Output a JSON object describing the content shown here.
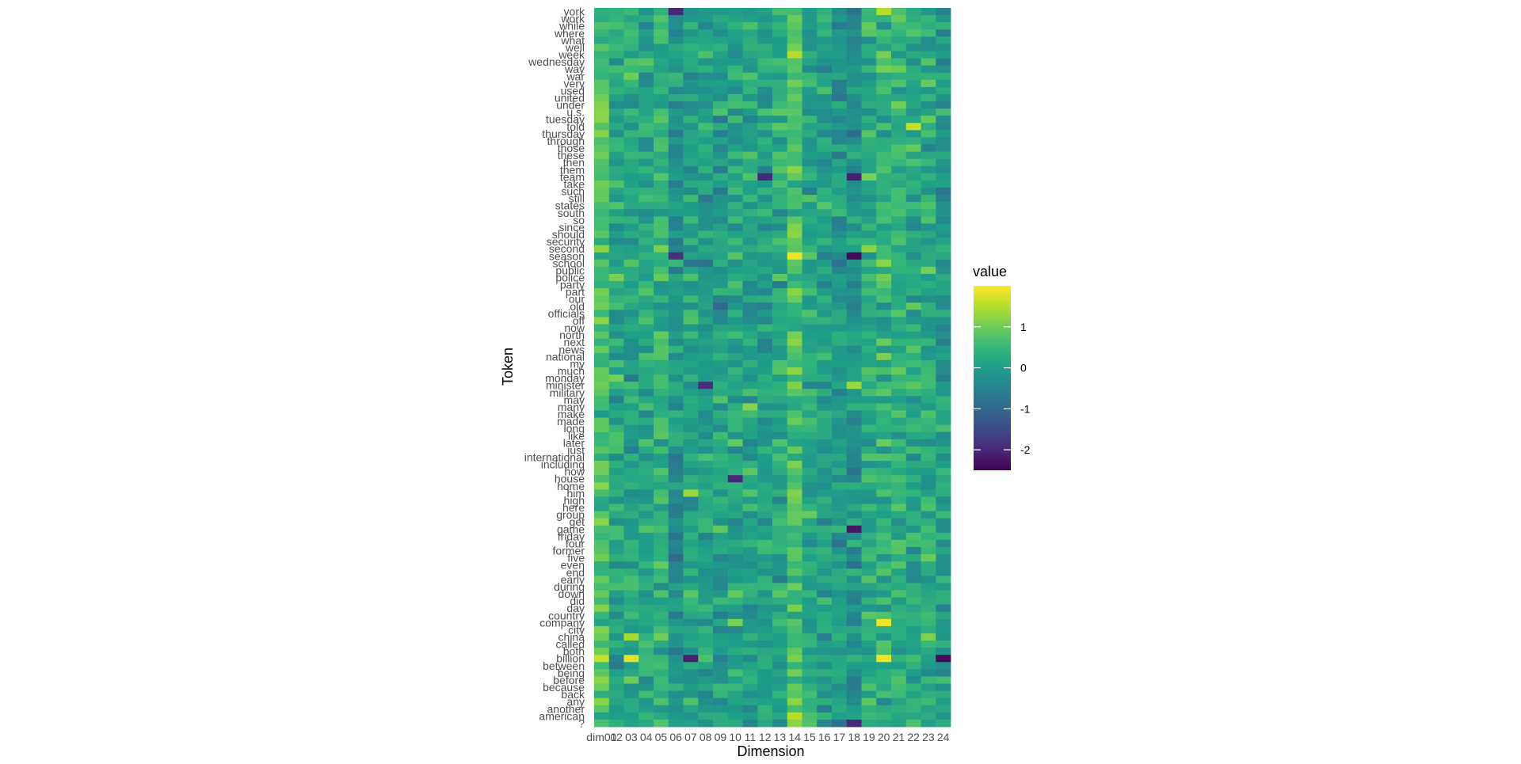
{
  "chart_data": {
    "type": "heatmap",
    "title": "",
    "xlabel": "Dimension",
    "ylabel": "Token",
    "legend": {
      "title": "value",
      "ticks": [
        1,
        0,
        -1,
        -2
      ],
      "tick_labels": [
        "1",
        "0",
        "-1",
        "-2"
      ],
      "range": [
        -2.5,
        2.0
      ],
      "colormap": "viridis",
      "placement": "right"
    },
    "x_categories": [
      "dim01",
      "dim02",
      "dim03",
      "dim04",
      "dim05",
      "dim06",
      "dim07",
      "dim08",
      "dim09",
      "dim10",
      "dim11",
      "dim12",
      "dim13",
      "dim14",
      "dim15",
      "dim16",
      "dim17",
      "dim18",
      "dim19",
      "dim20",
      "dim21",
      "dim22",
      "dim23",
      "dim24"
    ],
    "x_tick_labels": [
      "dim01",
      "02",
      "03",
      "04",
      "05",
      "06",
      "07",
      "08",
      "09",
      "10",
      "11",
      "12",
      "13",
      "14",
      "15",
      "16",
      "17",
      "18",
      "19",
      "20",
      "21",
      "22",
      "23",
      "24"
    ],
    "y_categories_top_to_bottom": [
      "york",
      "work",
      "while",
      "where",
      "what",
      "well",
      "week",
      "wednesday",
      "way",
      "war",
      "very",
      "used",
      "united",
      "under",
      "u.s.",
      "tuesday",
      "told",
      "thursday",
      "through",
      "those",
      "these",
      "then",
      "them",
      "team",
      "take",
      "such",
      "still",
      "states",
      "south",
      "so",
      "since",
      "should",
      "security",
      "second",
      "season",
      "school",
      "public",
      "police",
      "party",
      "part",
      "our",
      "old",
      "officials",
      "off",
      "now",
      "north",
      "next",
      "news",
      "national",
      "my",
      "much",
      "monday",
      "minister",
      "military",
      "may",
      "many",
      "make",
      "made",
      "long",
      "like",
      "later",
      "just",
      "international",
      "including",
      "how",
      "house",
      "home",
      "him",
      "high",
      "here",
      "group",
      "get",
      "game",
      "friday",
      "four",
      "former",
      "five",
      "even",
      "end",
      "early",
      "during",
      "down",
      "did",
      "day",
      "country",
      "company",
      "city",
      "china",
      "called",
      "both",
      "billion",
      "between",
      "being",
      "before",
      "because",
      "back",
      "any",
      "another",
      "american",
      "?"
    ],
    "value_note": "cell values range approximately -2.5 to 2.0; notable extremes read from colour",
    "highlights": [
      {
        "token": "billion",
        "dim": "dim01",
        "value": 1.6
      },
      {
        "token": "billion",
        "dim": "dim03",
        "value": 1.8
      },
      {
        "token": "billion",
        "dim": "dim07",
        "value": -2.1
      },
      {
        "token": "billion",
        "dim": "dim20",
        "value": 1.9
      },
      {
        "token": "billion",
        "dim": "dim24",
        "value": -2.4
      },
      {
        "token": "season",
        "dim": "dim14",
        "value": 1.9
      },
      {
        "token": "season",
        "dim": "dim18",
        "value": -2.4
      },
      {
        "token": "season",
        "dim": "dim06",
        "value": -1.9
      },
      {
        "token": "company",
        "dim": "dim20",
        "value": 1.9
      },
      {
        "token": "york",
        "dim": "dim20",
        "value": 1.5
      },
      {
        "token": "york",
        "dim": "dim06",
        "value": -2.0
      },
      {
        "token": "told",
        "dim": "dim22",
        "value": 1.6
      },
      {
        "token": "week",
        "dim": "dim14",
        "value": 1.5
      },
      {
        "token": "china",
        "dim": "dim03",
        "value": 1.4
      },
      {
        "token": "him",
        "dim": "dim07",
        "value": 1.3
      },
      {
        "token": "house",
        "dim": "dim10",
        "value": -2.0
      },
      {
        "token": "game",
        "dim": "dim18",
        "value": -2.2
      },
      {
        "token": "team",
        "dim": "dim12",
        "value": -2.0
      },
      {
        "token": "team",
        "dim": "dim18",
        "value": -2.1
      },
      {
        "token": "minister",
        "dim": "dim18",
        "value": 1.3
      },
      {
        "token": "minister",
        "dim": "dim08",
        "value": -1.9
      },
      {
        "token": "american",
        "dim": "dim14",
        "value": 1.5
      },
      {
        "token": "?",
        "dim": "dim14",
        "value": 1.2
      },
      {
        "token": "?",
        "dim": "dim18",
        "value": -2.0
      }
    ]
  }
}
